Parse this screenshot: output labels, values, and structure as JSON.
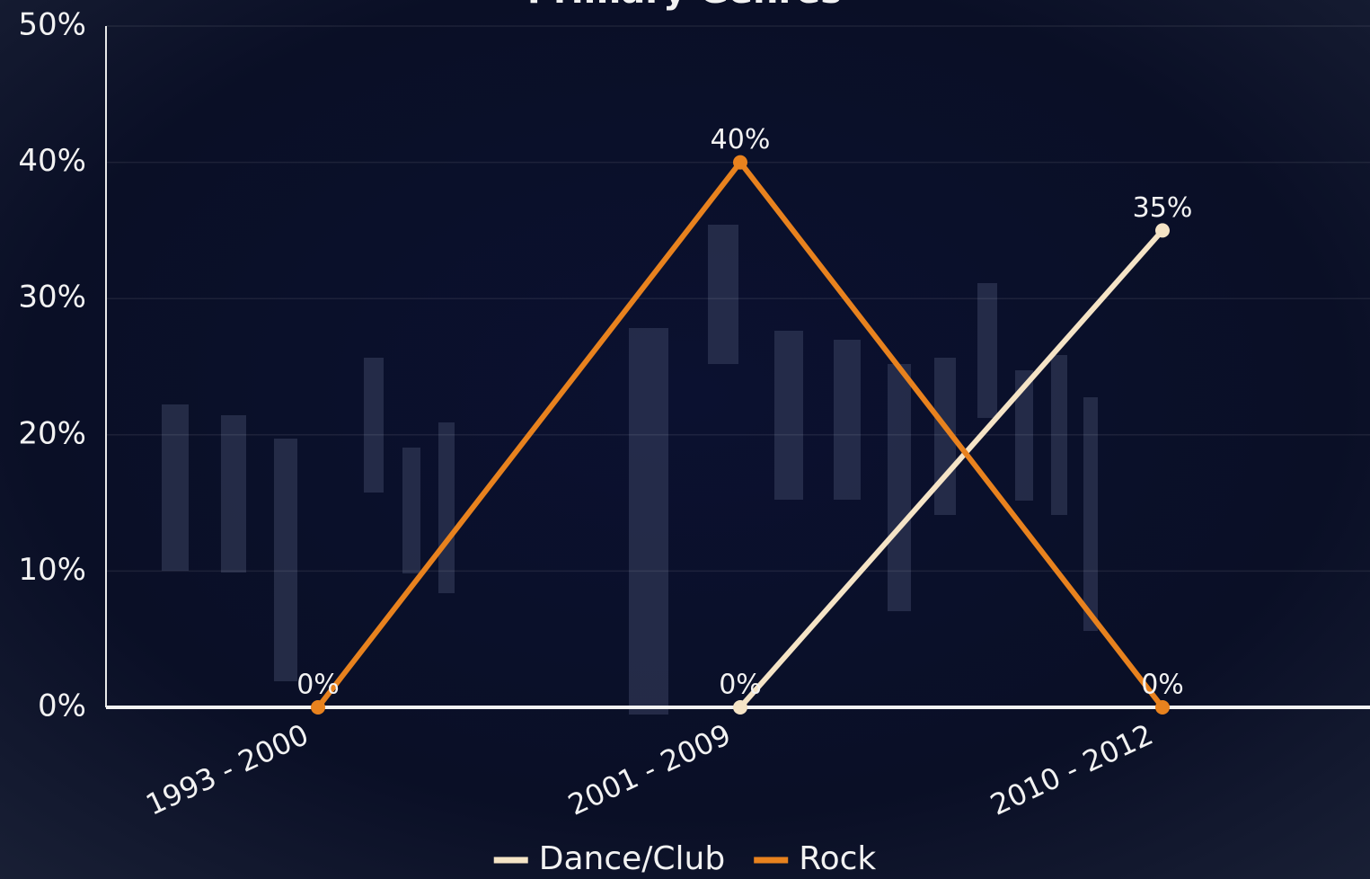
{
  "chart_data": {
    "type": "line",
    "title": "Primary Genres",
    "categories": [
      "1993 - 2000",
      "2001 - 2009",
      "2010 - 2012"
    ],
    "series": [
      {
        "name": "Dance/Club",
        "color": "#f5e4c6",
        "values": [
          null,
          0,
          35
        ],
        "value_labels": [
          null,
          "0%",
          "35%"
        ]
      },
      {
        "name": "Rock",
        "color": "#e8821e",
        "values": [
          0,
          40,
          0
        ],
        "value_labels": [
          "0%",
          "40%",
          "0%"
        ]
      }
    ],
    "ylim": [
      0,
      50
    ],
    "yticks": [
      {
        "value": 0,
        "label": "0%"
      },
      {
        "value": 10,
        "label": "10%"
      },
      {
        "value": 20,
        "label": "20%"
      },
      {
        "value": 30,
        "label": "30%"
      },
      {
        "value": 40,
        "label": "40%"
      },
      {
        "value": 50,
        "label": "50%"
      }
    ],
    "grid": true,
    "legend": "bottom"
  }
}
